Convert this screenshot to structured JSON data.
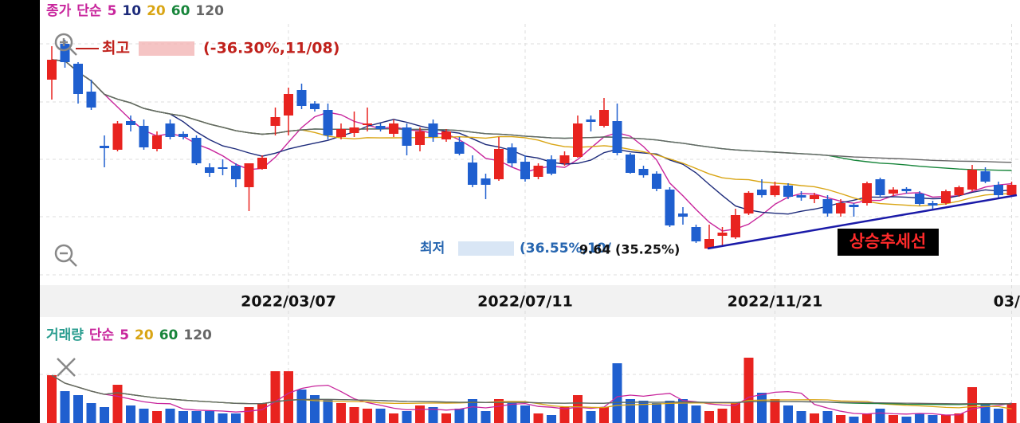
{
  "chart_data": {
    "type": "candlestick",
    "price_title": "종가",
    "ma_kind": "단순",
    "ma": [
      {
        "name": 5,
        "color": "#c8259c"
      },
      {
        "name": 10,
        "color": "#1c2a7a"
      },
      {
        "name": 20,
        "color": "#d9a514"
      },
      {
        "name": 60,
        "color": "#17853a"
      },
      {
        "name": 120,
        "color": "#666666"
      }
    ],
    "up_color": "#e8231f",
    "down_color": "#1f5fcf",
    "categories": [
      null,
      null,
      null,
      null,
      null,
      null,
      null,
      null,
      null,
      null,
      null,
      null,
      null,
      null,
      null,
      null,
      null,
      null,
      "2022/03/07",
      null,
      null,
      null,
      null,
      null,
      null,
      null,
      null,
      null,
      null,
      null,
      null,
      null,
      null,
      null,
      null,
      null,
      "2022/07/11",
      null,
      null,
      null,
      null,
      null,
      null,
      null,
      null,
      null,
      null,
      null,
      null,
      null,
      null,
      null,
      null,
      null,
      null,
      "2022/11/21",
      null,
      null,
      null,
      null,
      null,
      null,
      null,
      null,
      null,
      null,
      null,
      null,
      null,
      null,
      null,
      null,
      null,
      "03/"
    ],
    "open": [
      112.5,
      123.75,
      117.5,
      108.75,
      91.75,
      90.5,
      99.5,
      98,
      90.75,
      98.75,
      95.5,
      94.25,
      85,
      85,
      85.5,
      78.75,
      84.5,
      98,
      101.25,
      109.25,
      105,
      103,
      94.5,
      95.75,
      98.25,
      98,
      95.5,
      97.5,
      92,
      98.75,
      93.75,
      93,
      86.5,
      81.5,
      81.25,
      91.25,
      86.75,
      82,
      87.5,
      86.25,
      88.25,
      100,
      98,
      99.5,
      89,
      84.5,
      83,
      78,
      70.5,
      66.25,
      59.5,
      63.5,
      63,
      70.5,
      78,
      76.25,
      79.25,
      76.25,
      75,
      75,
      70.5,
      73.25,
      73.75,
      81.25,
      76.75,
      78.25,
      76.75,
      73.75,
      73.75,
      76.25,
      78,
      83.75,
      79.5,
      76.25
    ],
    "high": [
      123,
      125,
      118,
      112.5,
      95,
      99.5,
      101.25,
      100,
      96.25,
      100,
      96.25,
      95,
      86.25,
      87.5,
      86.25,
      86.25,
      88.75,
      103.75,
      110,
      111.25,
      105.75,
      105,
      98.75,
      102.5,
      103.75,
      98.75,
      100,
      98.75,
      97.5,
      100,
      97,
      94.5,
      88.75,
      83,
      94.5,
      92.5,
      88.75,
      86.25,
      88.75,
      90,
      101.25,
      101.25,
      106.75,
      105,
      89.5,
      85.5,
      83.75,
      78.75,
      72.5,
      67,
      67,
      66.25,
      72,
      77.5,
      81.25,
      80.5,
      80,
      77.5,
      77,
      76.25,
      75,
      73.75,
      80.5,
      81.75,
      78.75,
      78.75,
      77.5,
      74.5,
      78,
      79.25,
      85.75,
      85,
      80.5,
      80.5
    ],
    "low": [
      106.25,
      116.25,
      105,
      103,
      85,
      90,
      96.25,
      90.5,
      90,
      93.75,
      93.75,
      85.75,
      82,
      82.5,
      78.75,
      71.25,
      84.25,
      95,
      95,
      103.25,
      102.5,
      93.75,
      93.75,
      94.5,
      96.25,
      96.25,
      94.5,
      88.75,
      90,
      93,
      93,
      88.75,
      78.75,
      75,
      80.75,
      85,
      80.5,
      81.25,
      82.5,
      85.5,
      88,
      96.25,
      97.5,
      88.75,
      83,
      81.75,
      77.5,
      66.25,
      67,
      61.25,
      59.5,
      60.5,
      62.5,
      70,
      75.5,
      75.75,
      75,
      74.5,
      73.75,
      69.5,
      69.5,
      69.5,
      73,
      75.5,
      76,
      76.75,
      73,
      72,
      73.25,
      75.75,
      77.5,
      80,
      75,
      75.75
    ],
    "close": [
      118.75,
      118,
      108,
      103.75,
      91,
      98.75,
      98.25,
      91.25,
      95,
      94.5,
      94.5,
      86.25,
      83.25,
      84.5,
      81.25,
      86.25,
      88,
      100.75,
      108,
      104.25,
      103.25,
      95,
      97,
      97.5,
      98.75,
      97,
      98.75,
      91.75,
      96.25,
      94.5,
      96.25,
      89.25,
      79.5,
      79.5,
      90.75,
      86.25,
      81.25,
      85.5,
      83,
      88.75,
      98.75,
      99.25,
      103,
      89.5,
      83.25,
      82.5,
      78.25,
      66.75,
      69.5,
      61.75,
      62.5,
      64.5,
      70,
      77,
      76.25,
      79.25,
      75.75,
      75.5,
      76.25,
      70.5,
      73.75,
      72.5,
      80,
      76.25,
      78,
      77.5,
      73.5,
      73,
      77.5,
      78.75,
      84.25,
      80.5,
      76.25,
      79.5
    ],
    "ylim": [
      50,
      130
    ],
    "high_label": "최고",
    "high_change": "(-36.30%,11/08)",
    "low_label": "최저",
    "low_change": "(36.55%,10/",
    "last_label": "9.64 (35.25%)",
    "trendline_label": "상승추세선",
    "volume_title": "거래량",
    "volume_ma": [
      {
        "name": 5,
        "color": "#c8259c"
      },
      {
        "name": 20,
        "color": "#d9a514"
      },
      {
        "name": 60,
        "color": "#17853a"
      },
      {
        "name": 120,
        "color": "#666666"
      }
    ],
    "volume": [
      60,
      40,
      35,
      25,
      20,
      48,
      22,
      18,
      15,
      18,
      15,
      15,
      15,
      12,
      12,
      20,
      25,
      65,
      65,
      42,
      35,
      30,
      25,
      20,
      18,
      18,
      12,
      15,
      22,
      20,
      12,
      18,
      30,
      15,
      30,
      25,
      22,
      12,
      10,
      20,
      35,
      15,
      20,
      75,
      30,
      28,
      25,
      28,
      30,
      22,
      15,
      18,
      25,
      82,
      38,
      30,
      22,
      15,
      12,
      15,
      10,
      8,
      12,
      18,
      10,
      8,
      12,
      10,
      10,
      12,
      45,
      25,
      18,
      25
    ],
    "volume_ylim": [
      0,
      90
    ]
  }
}
